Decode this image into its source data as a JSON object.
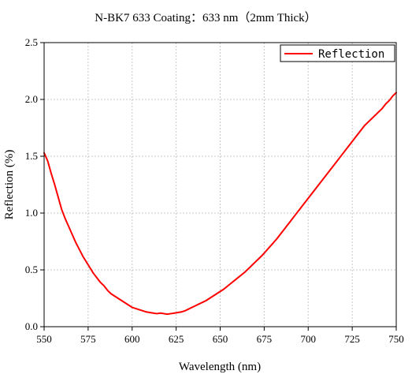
{
  "chart_data": {
    "type": "line",
    "title": "N-BK7 633 Coating：633 nm（2mm Thick）",
    "xlabel": "Wavelength (nm)",
    "ylabel": "Reflection (%)",
    "xlim": [
      550,
      750
    ],
    "ylim": [
      0,
      2.5
    ],
    "xticks": [
      550,
      575,
      600,
      625,
      650,
      675,
      700,
      725,
      750
    ],
    "yticks": [
      0.0,
      0.5,
      1.0,
      1.5,
      2.0,
      2.5
    ],
    "xtick_labels": [
      "550",
      "575",
      "600",
      "625",
      "650",
      "675",
      "700",
      "725",
      "750"
    ],
    "ytick_labels": [
      "0.0",
      "0.5",
      "1.0",
      "1.5",
      "2.0",
      "2.5"
    ],
    "grid": true,
    "legend_position": "top-right",
    "series": [
      {
        "name": "Reflection",
        "color": "#ff0000",
        "x": [
          550,
          552,
          554,
          556,
          558,
          560,
          562,
          564,
          566,
          568,
          570,
          572,
          574,
          576,
          578,
          580,
          582,
          584,
          586,
          588,
          590,
          592,
          594,
          596,
          598,
          600,
          602,
          604,
          606,
          608,
          610,
          612,
          614,
          616,
          618,
          620,
          622,
          624,
          626,
          628,
          630,
          632,
          634,
          636,
          638,
          640,
          642,
          644,
          646,
          648,
          650,
          652,
          654,
          656,
          658,
          660,
          662,
          664,
          666,
          668,
          670,
          672,
          674,
          676,
          678,
          680,
          682,
          684,
          686,
          688,
          690,
          692,
          694,
          696,
          698,
          700,
          702,
          704,
          706,
          708,
          710,
          712,
          714,
          716,
          718,
          720,
          722,
          724,
          726,
          728,
          730,
          732,
          734,
          736,
          738,
          740,
          742,
          744,
          746,
          748,
          750
        ],
        "y": [
          1.53,
          1.46,
          1.35,
          1.25,
          1.14,
          1.03,
          0.95,
          0.88,
          0.81,
          0.74,
          0.68,
          0.62,
          0.57,
          0.52,
          0.47,
          0.43,
          0.39,
          0.36,
          0.32,
          0.29,
          0.27,
          0.25,
          0.23,
          0.21,
          0.19,
          0.17,
          0.16,
          0.15,
          0.14,
          0.13,
          0.125,
          0.12,
          0.115,
          0.12,
          0.115,
          0.11,
          0.115,
          0.12,
          0.125,
          0.13,
          0.14,
          0.155,
          0.17,
          0.185,
          0.2,
          0.215,
          0.23,
          0.25,
          0.27,
          0.29,
          0.31,
          0.33,
          0.355,
          0.38,
          0.405,
          0.43,
          0.455,
          0.48,
          0.51,
          0.54,
          0.57,
          0.6,
          0.63,
          0.665,
          0.7,
          0.735,
          0.77,
          0.81,
          0.85,
          0.89,
          0.93,
          0.97,
          1.01,
          1.05,
          1.09,
          1.13,
          1.17,
          1.21,
          1.25,
          1.29,
          1.33,
          1.37,
          1.41,
          1.45,
          1.49,
          1.53,
          1.57,
          1.61,
          1.65,
          1.69,
          1.73,
          1.77,
          1.8,
          1.83,
          1.86,
          1.89,
          1.92,
          1.96,
          1.99,
          2.03,
          2.06
        ]
      }
    ]
  }
}
